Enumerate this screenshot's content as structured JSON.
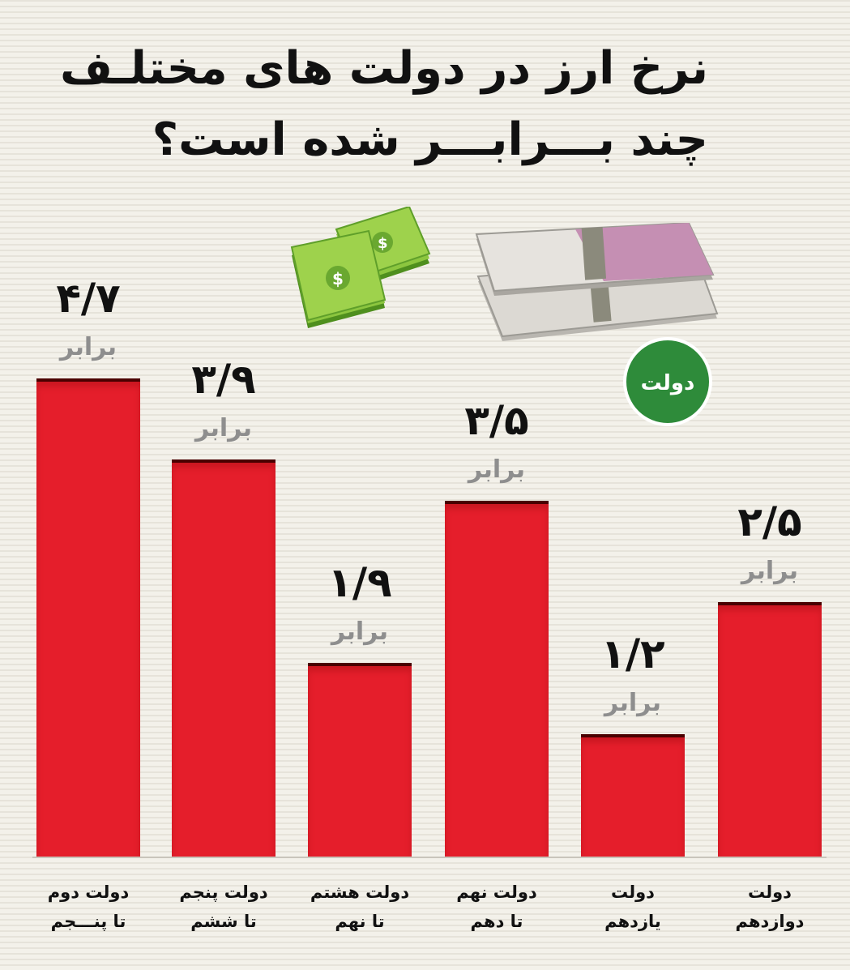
{
  "title": {
    "line1": "نرخ ارز در دولت های مختلـف",
    "line2": "چند بـــرابـــر شده است؟"
  },
  "logo": {
    "text": "دولت",
    "color": "#2e8b3a"
  },
  "colors": {
    "bar": "#e51e2b",
    "bar_top": "#4a0000",
    "value_text": "#111111",
    "unit_text": "#8e8e8e"
  },
  "icons": {
    "dollar": "dollar-bills-stack-icon",
    "euro": "euro-bills-stack-icon"
  },
  "chart_data": {
    "type": "bar",
    "title": "نرخ ارز در دولت های مختلـف چند بـــرابـــر شده است؟",
    "xlabel": "",
    "ylabel": "",
    "ylim": [
      0,
      4.7
    ],
    "grid": false,
    "legend": "none",
    "unit": "برابر",
    "categories": [
      [
        "دولت دوم",
        "تا پنـــجم"
      ],
      [
        "دولت پنجم",
        "تا ششم"
      ],
      [
        "دولت هشتم",
        "تا نهم"
      ],
      [
        "دولت نهم",
        "تا دهم"
      ],
      [
        "دولت",
        "یازدهم"
      ],
      [
        "دولت",
        "دوازدهم"
      ]
    ],
    "values": [
      4.7,
      3.9,
      1.9,
      3.5,
      1.2,
      2.5
    ],
    "value_labels": [
      "۴/۷",
      "۳/۹",
      "۱/۹",
      "۳/۵",
      "۱/۲",
      "۲/۵"
    ]
  }
}
